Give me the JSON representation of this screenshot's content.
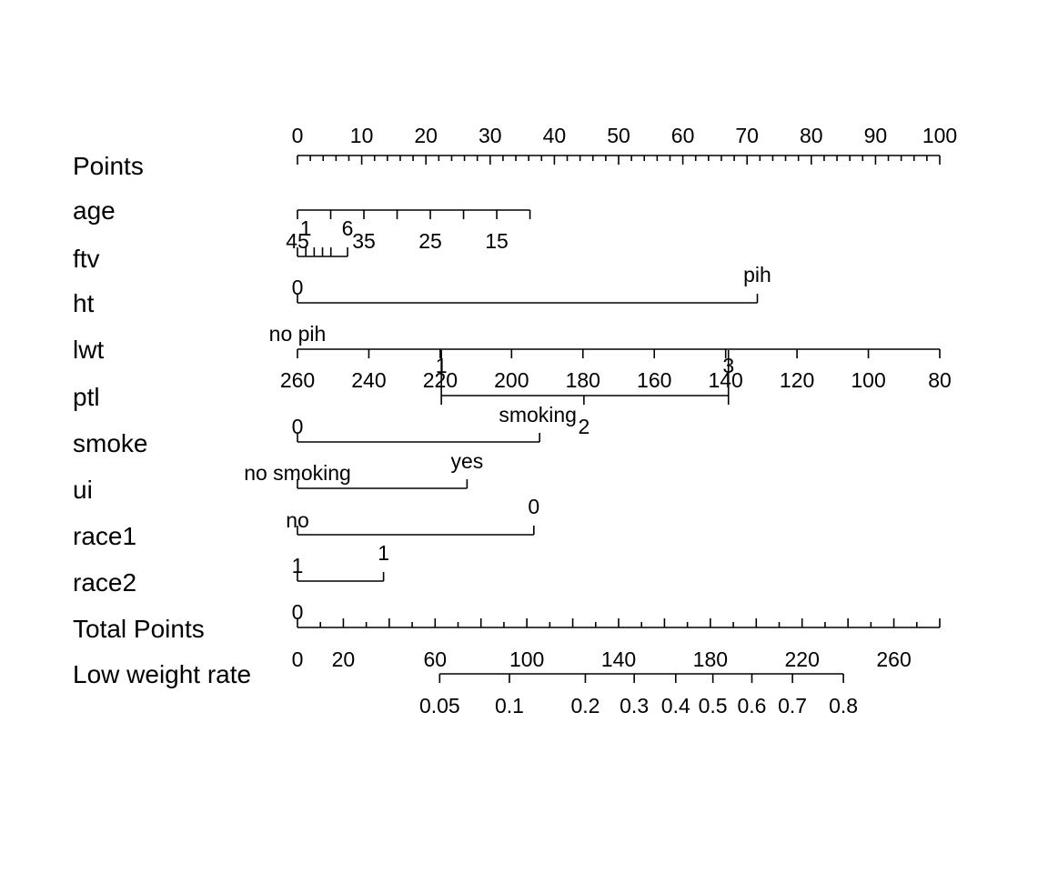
{
  "chart_data": {
    "type": "nomogram",
    "title": "",
    "rows": [
      {
        "name": "Points",
        "scale": "points",
        "range": [
          0,
          100
        ],
        "labels": [
          0,
          10,
          20,
          30,
          40,
          50,
          60,
          70,
          80,
          90,
          100
        ],
        "minor_step": 2
      },
      {
        "name": "age",
        "values": [
          45,
          40,
          35,
          30,
          25,
          20,
          15,
          10
        ],
        "labeled": [
          45,
          35,
          25,
          15
        ],
        "points_at_45": 0,
        "points_at_10": 36.2
      },
      {
        "name": "ftv",
        "levels": [
          {
            "label": "0",
            "points": 0
          },
          {
            "label": "1",
            "points": 1.3
          },
          {
            "label": "2",
            "points": 2.6
          },
          {
            "label": "3",
            "points": 3.9
          },
          {
            "label": "4",
            "points": 5.2
          },
          {
            "label": "6",
            "points": 7.8
          }
        ],
        "labeled": [
          "1",
          "6"
        ],
        "tick_values": [
          0,
          1,
          2,
          3,
          4,
          6
        ]
      },
      {
        "name": "ht",
        "levels": [
          {
            "label": "0",
            "points": 0
          },
          {
            "label": "pih",
            "points": 71.6
          }
        ]
      },
      {
        "name": "lwt",
        "left_label": "no pih",
        "values": [
          260,
          240,
          220,
          200,
          180,
          160,
          140,
          120,
          100,
          80
        ],
        "labeled": [
          260,
          240,
          220,
          200,
          180,
          160,
          140,
          120,
          100,
          80
        ],
        "points_at_260": 0,
        "points_at_80": 100
      },
      {
        "name": "ptl",
        "levels": [
          {
            "label": "1",
            "points": 22.4
          },
          {
            "label": "2",
            "points": 44.6
          },
          {
            "label": "3",
            "points": 67.1
          }
        ]
      },
      {
        "name": "smoke",
        "levels": [
          {
            "label": "0",
            "points": 0
          },
          {
            "label": "smoking",
            "points": 37.7
          }
        ]
      },
      {
        "name": "ui",
        "levels": [
          {
            "label": "no smoking",
            "points": 0
          },
          {
            "label": "yes",
            "points": 26.4
          }
        ]
      },
      {
        "name": "race1",
        "levels": [
          {
            "label": "no",
            "points": 0
          },
          {
            "label": "0",
            "points": 36.8
          }
        ]
      },
      {
        "name": "race2",
        "levels": [
          {
            "label": "1",
            "points": 0
          },
          {
            "label": "1",
            "points": 13.4
          }
        ]
      },
      {
        "name": "Total Points",
        "scale": "total",
        "range": [
          0,
          280
        ],
        "labels": [
          0,
          20,
          60,
          100,
          140,
          180,
          220,
          260
        ],
        "minor_step": 10,
        "zero_label_above": "0"
      },
      {
        "name": "Low weight rate",
        "scale": "probability",
        "labels": [
          "0.05",
          "0.1",
          "0.2",
          "0.3",
          "0.4",
          "0.5",
          "0.6",
          "0.7",
          "0.8"
        ],
        "total_points_at": [
          62,
          92.4,
          125.5,
          146.8,
          164.9,
          181.1,
          198.1,
          215.8,
          238.0
        ]
      }
    ]
  }
}
